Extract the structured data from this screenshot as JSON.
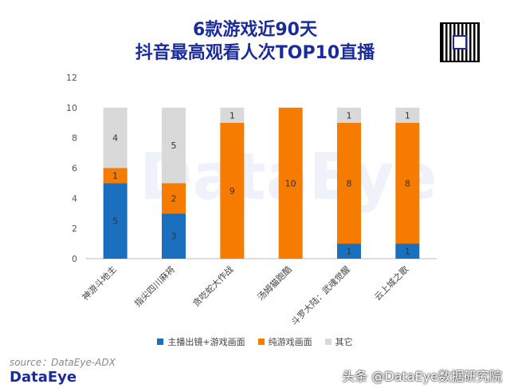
{
  "header": {
    "title_line1": "6款游戏近90天",
    "title_line2": "抖音最高观看人次TOP10直播"
  },
  "watermark_text": "DataEye",
  "chart_data": {
    "type": "bar",
    "stacked": true,
    "categories": [
      "神游斗地主",
      "指尖四川麻将",
      "贪吃蛇大作战",
      "汤姆猫跑酷",
      "斗罗大陆：武魂觉醒",
      "云上城之歌"
    ],
    "series": [
      {
        "name": "主播出镜+游戏画面",
        "color": "#1a6fbf",
        "values": [
          5,
          3,
          0,
          0,
          1,
          1
        ]
      },
      {
        "name": "纯游戏画面",
        "color": "#f57c00",
        "values": [
          1,
          2,
          9,
          10,
          8,
          8
        ]
      },
      {
        "name": "其它",
        "color": "#d9d9d9",
        "values": [
          4,
          5,
          1,
          0,
          1,
          1
        ]
      }
    ],
    "ylim": [
      0,
      12
    ],
    "yticks": [
      0,
      2,
      4,
      6,
      8,
      10,
      12
    ],
    "grid": false,
    "legend_position": "bottom"
  },
  "source_text": "source：DataEye-ADX",
  "brand_text": "DataEye",
  "footer_text": "头条 @DataEye数据研究院"
}
